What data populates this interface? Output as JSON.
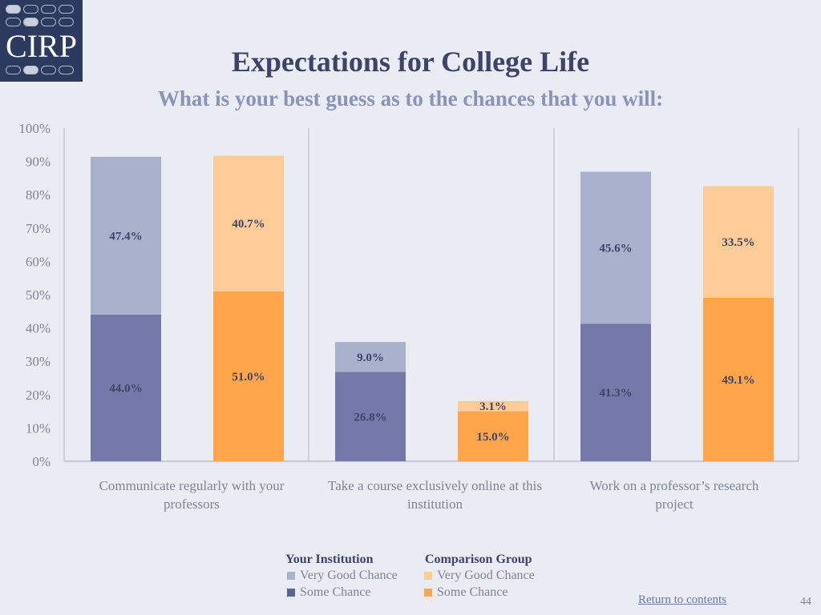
{
  "logo": {
    "text": "CIRP"
  },
  "title": "Expectations for College Life",
  "subtitle": "What is your best guess as to the chances that you will:",
  "colors": {
    "your_some": "#7479aa",
    "your_very": "#a9b0cc",
    "comp_some": "#ffa64d",
    "comp_very": "#ffcc99"
  },
  "chart_data": {
    "type": "bar",
    "stacked": true,
    "categories": [
      "Communicate regularly with your professors",
      "Take a course exclusively online at this institution",
      "Work on a professor’s research project"
    ],
    "ylim": [
      0,
      100
    ],
    "y_ticks": [
      "0%",
      "10%",
      "20%",
      "30%",
      "40%",
      "50%",
      "60%",
      "70%",
      "80%",
      "90%",
      "100%"
    ],
    "series": [
      {
        "name": "Your Institution – Some Chance",
        "group": "Your Institution",
        "layer": "Some Chance",
        "values": [
          44.0,
          26.8,
          41.3
        ],
        "labels": [
          "44.0%",
          "26.8%",
          "41.3%"
        ]
      },
      {
        "name": "Your Institution – Very Good Chance",
        "group": "Your Institution",
        "layer": "Very Good Chance",
        "values": [
          47.4,
          9.0,
          45.6
        ],
        "labels": [
          "47.4%",
          "9.0%",
          "45.6%"
        ]
      },
      {
        "name": "Comparison Group – Some Chance",
        "group": "Comparison Group",
        "layer": "Some Chance",
        "values": [
          51.0,
          15.0,
          49.1
        ],
        "labels": [
          "51.0%",
          "15.0%",
          "49.1%"
        ]
      },
      {
        "name": "Comparison Group – Very Good Chance",
        "group": "Comparison Group",
        "layer": "Very Good Chance",
        "values": [
          40.7,
          3.1,
          33.5
        ],
        "labels": [
          "40.7%",
          "3.1%",
          "33.5%"
        ]
      }
    ]
  },
  "category_labels": [
    {
      "line1": "Communicate regularly with your",
      "line2": "professors"
    },
    {
      "line1": "Take a course exclusively online at this",
      "line2": "institution"
    },
    {
      "line1": "Work on a professor’s research",
      "line2": "project"
    }
  ],
  "legend": {
    "your_institution": {
      "heading": "Your Institution",
      "very": "Very Good Chance",
      "some": "Some Chance"
    },
    "comparison_group": {
      "heading": "Comparison Group",
      "very": "Very Good Chance",
      "some": "Some Chance"
    }
  },
  "footer": {
    "return_link": "Return to contents",
    "page_number": "44"
  }
}
